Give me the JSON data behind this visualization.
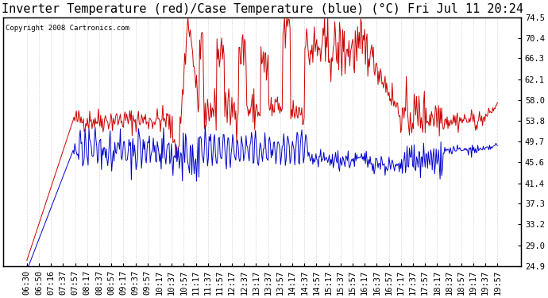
{
  "title": "Inverter Temperature (red)/Case Temperature (blue) (°C) Fri Jul 11 20:24",
  "copyright": "Copyright 2008 Cartronics.com",
  "ylabel_right_ticks": [
    74.5,
    70.4,
    66.3,
    62.1,
    58.0,
    53.8,
    49.7,
    45.6,
    41.4,
    37.3,
    33.2,
    29.0,
    24.9
  ],
  "ymin": 24.9,
  "ymax": 74.5,
  "bg_color": "#ffffff",
  "plot_bg_color": "#ffffff",
  "grid_color": "#aaaaaa",
  "red_color": "#cc0000",
  "blue_color": "#0000cc",
  "title_fontsize": 11,
  "tick_fontsize": 7.5,
  "copyright_fontsize": 6.5
}
